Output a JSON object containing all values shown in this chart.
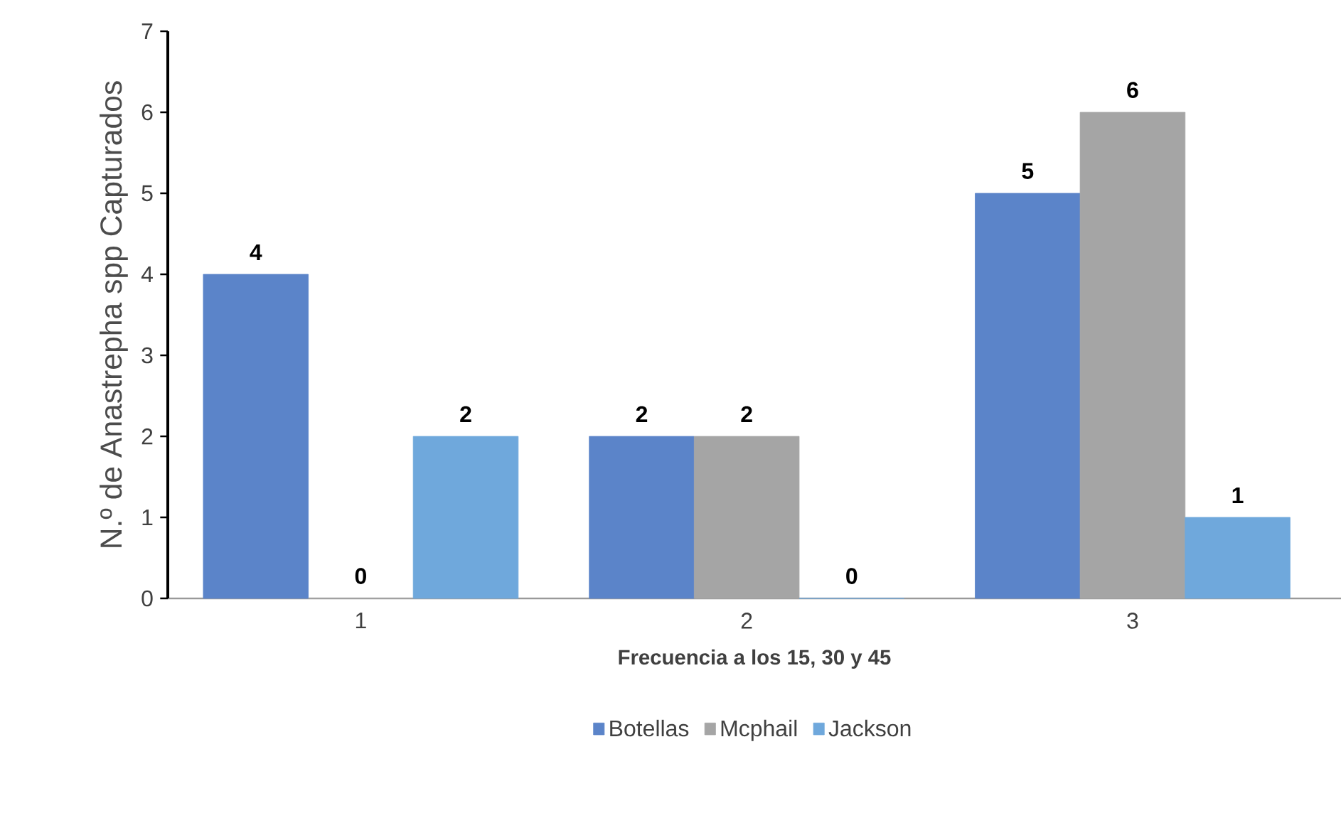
{
  "chart_data": {
    "type": "bar",
    "xlabel": "Frecuencia a los 15, 30 y 45",
    "ylabel": "N.º de Anastrepha spp Capturados",
    "categories": [
      "1",
      "2",
      "3"
    ],
    "series": [
      {
        "name": "Botellas",
        "color": "#5b84c9",
        "values": [
          4,
          2,
          5
        ]
      },
      {
        "name": "Mcphail",
        "color": "#a5a5a5",
        "values": [
          0,
          2,
          6
        ]
      },
      {
        "name": "Jackson",
        "color": "#6fa8dc",
        "values": [
          2,
          0,
          1
        ]
      }
    ],
    "ylim": [
      0,
      7
    ],
    "yticks": [
      0,
      1,
      2,
      3,
      4,
      5,
      6,
      7
    ],
    "data_labels": true,
    "legend": "bottom",
    "grid": false
  }
}
